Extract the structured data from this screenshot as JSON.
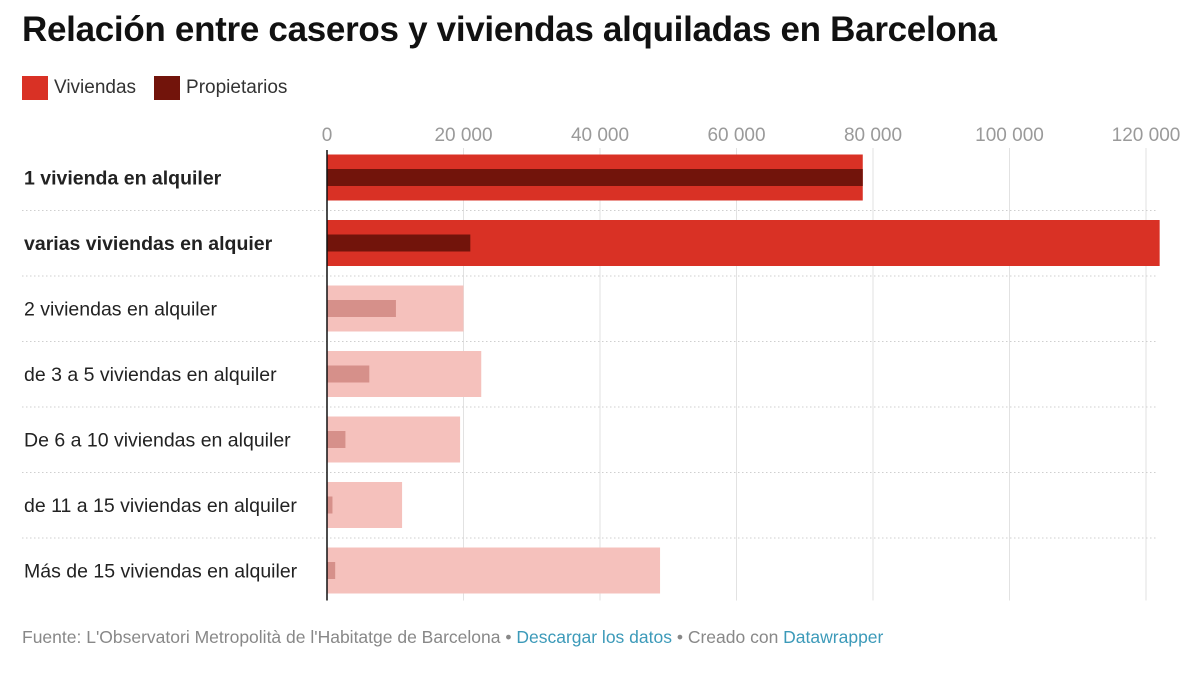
{
  "chart_data": {
    "type": "bar",
    "title": "Relación entre caseros y viviendas alquiladas en Barcelona",
    "series": [
      {
        "name": "Viviendas",
        "color": "#d93125",
        "values": [
          78500,
          122000,
          20000,
          22600,
          19500,
          11000,
          48800
        ]
      },
      {
        "name": "Propietarios",
        "color": "#72140b",
        "values": [
          78500,
          21000,
          10100,
          6200,
          2700,
          800,
          1200
        ]
      }
    ],
    "categories": [
      "1 vivienda en alquiler",
      "varias viviendas en alquier",
      "2 viviendas en alquiler",
      "de 3 a 5 viviendas en alquiler",
      "De 6 a 10 viviendas en alquiler",
      "de 11 a 15 viviendas en alquiler",
      "Más de 15 viviendas en alquiler"
    ],
    "highlighted": [
      true,
      true,
      false,
      false,
      false,
      false,
      false
    ],
    "faded_colors": {
      "Viviendas": "#f5c1bc",
      "Propietarios": "#d6908a"
    },
    "xticks": [
      0,
      20000,
      40000,
      60000,
      80000,
      100000,
      120000
    ],
    "xtick_labels": [
      "0",
      "20 000",
      "40 000",
      "60 000",
      "80 000",
      "100 000",
      "120 000"
    ],
    "xlim": [
      0,
      122000
    ],
    "grid": true,
    "legend_position": "top-left"
  },
  "footer": {
    "source": "Fuente: L'Observatori Metropolità de l'Habitatge de Barcelona",
    "sep1": " • ",
    "download_link": "Descargar los datos",
    "sep2": " • Creado con ",
    "tool_link": "Datawrapper"
  }
}
